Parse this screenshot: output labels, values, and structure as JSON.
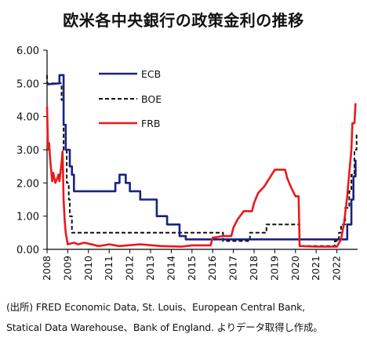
{
  "chart_data": {
    "type": "line",
    "title": "欧米各中央銀行の政策金利の推移",
    "xlabel": "",
    "ylabel": "",
    "xlim": [
      2008.0,
      2023.0
    ],
    "ylim": [
      0,
      6
    ],
    "yticks": [
      "0.00",
      "1.00",
      "2.00",
      "3.00",
      "4.00",
      "5.00",
      "6.00"
    ],
    "xticks": [
      "2008",
      "2009",
      "2010",
      "2011",
      "2012",
      "2013",
      "2014",
      "2015",
      "2016",
      "2017",
      "2018",
      "2019",
      "2020",
      "2021",
      "2022"
    ],
    "grid": false,
    "legend": "top-left",
    "series": [
      {
        "name": "ECB",
        "color": "#1a237e",
        "style": "solid",
        "points": [
          [
            2008.0,
            4.97
          ],
          [
            2008.6,
            5.0
          ],
          [
            2008.6,
            5.25
          ],
          [
            2008.8,
            5.25
          ],
          [
            2008.8,
            3.75
          ],
          [
            2008.9,
            3.75
          ],
          [
            2008.9,
            3.0
          ],
          [
            2009.1,
            3.0
          ],
          [
            2009.1,
            2.5
          ],
          [
            2009.2,
            2.5
          ],
          [
            2009.2,
            2.25
          ],
          [
            2009.3,
            2.25
          ],
          [
            2009.3,
            1.75
          ],
          [
            2011.3,
            1.75
          ],
          [
            2011.3,
            2.0
          ],
          [
            2011.5,
            2.0
          ],
          [
            2011.5,
            2.25
          ],
          [
            2011.8,
            2.25
          ],
          [
            2011.8,
            2.0
          ],
          [
            2012.0,
            2.0
          ],
          [
            2012.0,
            1.75
          ],
          [
            2012.5,
            1.75
          ],
          [
            2012.5,
            1.5
          ],
          [
            2013.3,
            1.5
          ],
          [
            2013.3,
            1.0
          ],
          [
            2013.8,
            1.0
          ],
          [
            2013.8,
            0.75
          ],
          [
            2014.4,
            0.75
          ],
          [
            2014.4,
            0.4
          ],
          [
            2014.7,
            0.4
          ],
          [
            2014.7,
            0.3
          ],
          [
            2015.9,
            0.3
          ],
          [
            2015.9,
            0.3
          ],
          [
            2022.5,
            0.3
          ],
          [
            2022.5,
            0.75
          ],
          [
            2022.7,
            0.75
          ],
          [
            2022.7,
            1.5
          ],
          [
            2022.8,
            1.5
          ],
          [
            2022.8,
            2.2
          ],
          [
            2022.9,
            2.2
          ],
          [
            2022.9,
            2.7
          ]
        ]
      },
      {
        "name": "BOE",
        "color": "#111111",
        "style": "dashed",
        "points": [
          [
            2008.0,
            5.25
          ],
          [
            2008.0,
            5.0
          ],
          [
            2008.7,
            5.0
          ],
          [
            2008.7,
            4.5
          ],
          [
            2008.8,
            4.5
          ],
          [
            2008.8,
            3.0
          ],
          [
            2008.95,
            3.0
          ],
          [
            2008.95,
            2.0
          ],
          [
            2009.05,
            2.0
          ],
          [
            2009.05,
            1.5
          ],
          [
            2009.1,
            1.5
          ],
          [
            2009.1,
            1.0
          ],
          [
            2009.2,
            1.0
          ],
          [
            2009.2,
            0.5
          ],
          [
            2016.5,
            0.5
          ],
          [
            2016.5,
            0.25
          ],
          [
            2017.8,
            0.25
          ],
          [
            2017.8,
            0.5
          ],
          [
            2018.6,
            0.5
          ],
          [
            2018.6,
            0.75
          ],
          [
            2020.2,
            0.75
          ],
          [
            2020.2,
            0.1
          ],
          [
            2021.9,
            0.1
          ],
          [
            2021.9,
            0.25
          ],
          [
            2022.1,
            0.25
          ],
          [
            2022.1,
            0.5
          ],
          [
            2022.2,
            0.5
          ],
          [
            2022.2,
            0.75
          ],
          [
            2022.4,
            0.75
          ],
          [
            2022.4,
            1.25
          ],
          [
            2022.6,
            1.25
          ],
          [
            2022.6,
            1.75
          ],
          [
            2022.7,
            1.75
          ],
          [
            2022.7,
            2.25
          ],
          [
            2022.85,
            2.25
          ],
          [
            2022.85,
            3.0
          ],
          [
            2022.95,
            3.0
          ],
          [
            2022.95,
            3.5
          ]
        ]
      },
      {
        "name": "FRB",
        "color": "#e8191e",
        "style": "solid",
        "points": [
          [
            2008.0,
            4.3
          ],
          [
            2008.05,
            3.0
          ],
          [
            2008.1,
            3.2
          ],
          [
            2008.15,
            2.7
          ],
          [
            2008.25,
            2.05
          ],
          [
            2008.3,
            2.3
          ],
          [
            2008.4,
            2.0
          ],
          [
            2008.5,
            2.15
          ],
          [
            2008.55,
            2.25
          ],
          [
            2008.6,
            2.05
          ],
          [
            2008.7,
            2.6
          ],
          [
            2008.75,
            2.95
          ],
          [
            2008.8,
            1.5
          ],
          [
            2008.85,
            0.9
          ],
          [
            2008.9,
            0.5
          ],
          [
            2009.0,
            0.15
          ],
          [
            2009.3,
            0.2
          ],
          [
            2009.5,
            0.15
          ],
          [
            2009.8,
            0.2
          ],
          [
            2010.5,
            0.1
          ],
          [
            2011.0,
            0.15
          ],
          [
            2011.5,
            0.1
          ],
          [
            2012.5,
            0.15
          ],
          [
            2013.5,
            0.1
          ],
          [
            2014.5,
            0.08
          ],
          [
            2015.0,
            0.12
          ],
          [
            2015.9,
            0.12
          ],
          [
            2016.0,
            0.35
          ],
          [
            2016.5,
            0.4
          ],
          [
            2016.9,
            0.4
          ],
          [
            2017.0,
            0.65
          ],
          [
            2017.2,
            0.9
          ],
          [
            2017.5,
            1.15
          ],
          [
            2017.9,
            1.15
          ],
          [
            2018.0,
            1.4
          ],
          [
            2018.2,
            1.7
          ],
          [
            2018.5,
            1.9
          ],
          [
            2018.8,
            2.2
          ],
          [
            2019.0,
            2.4
          ],
          [
            2019.5,
            2.4
          ],
          [
            2019.6,
            2.15
          ],
          [
            2019.8,
            1.85
          ],
          [
            2020.0,
            1.6
          ],
          [
            2020.15,
            1.6
          ],
          [
            2020.2,
            0.1
          ],
          [
            2021.0,
            0.08
          ],
          [
            2022.0,
            0.08
          ],
          [
            2022.2,
            0.3
          ],
          [
            2022.35,
            0.8
          ],
          [
            2022.5,
            1.6
          ],
          [
            2022.6,
            2.3
          ],
          [
            2022.7,
            3.0
          ],
          [
            2022.75,
            3.8
          ],
          [
            2022.85,
            3.8
          ],
          [
            2022.9,
            4.4
          ]
        ]
      }
    ]
  },
  "source": {
    "line1": "(出所) FRED Economic Data, St. Louis、European Central Bank,",
    "line2": "Statical Data Warehouse、Bank of England. よりデータ取得し作成。"
  }
}
